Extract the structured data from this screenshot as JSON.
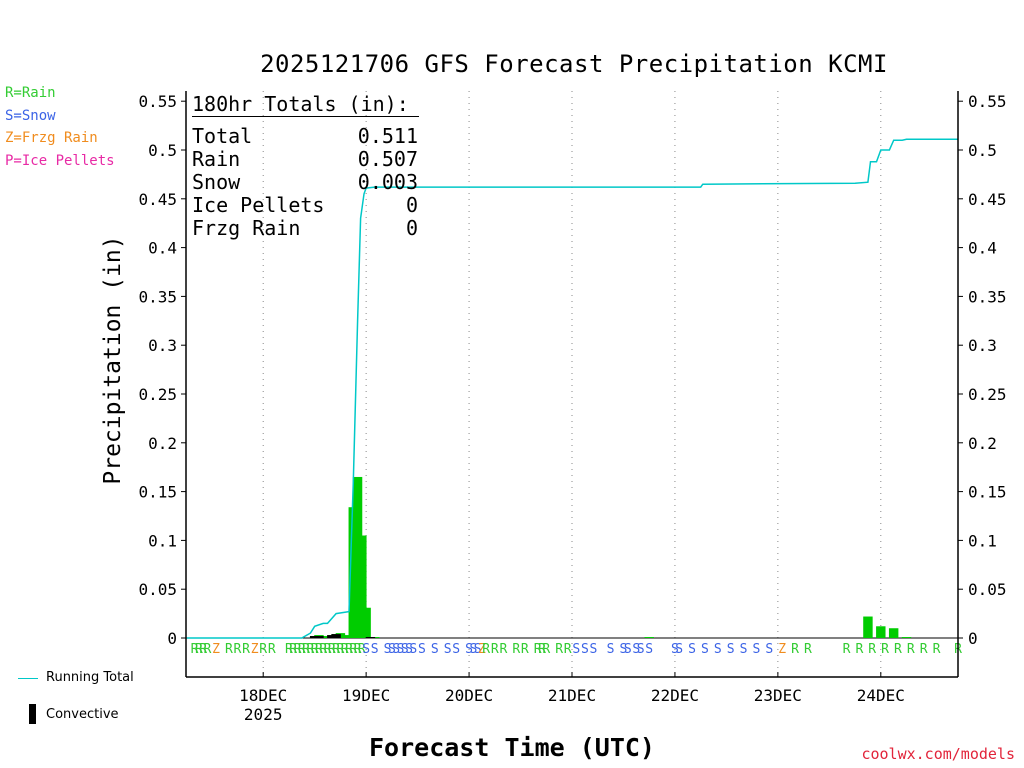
{
  "title": "2025121706 GFS Forecast Precipitation KCMI",
  "credit": "coolwx.com/models",
  "ptype_legend": [
    {
      "label": "R=Rain",
      "color": "#33cc33"
    },
    {
      "label": "S=Snow",
      "color": "#3b63e6"
    },
    {
      "label": "Z=Frzg Rain",
      "color": "#f08c1e"
    },
    {
      "label": "P=Ice Pellets",
      "color": "#e82aa5"
    }
  ],
  "series_legend": {
    "running_total": "Running Total",
    "convective": "Convective"
  },
  "totals_box": {
    "heading": "180hr Totals (in):",
    "rows": [
      {
        "label": "Total",
        "value": "0.511"
      },
      {
        "label": "Rain",
        "value": "0.507"
      },
      {
        "label": "Snow",
        "value": "0.003"
      },
      {
        "label": "Ice Pellets",
        "value": "0"
      },
      {
        "label": "Frzg Rain",
        "value": "0"
      }
    ]
  },
  "colors": {
    "bar": "#00cc00",
    "running_total": "#00c8c8",
    "convective": "#000000"
  },
  "chart_data": {
    "type": "bar",
    "title": "2025121706 GFS Forecast Precipitation KCMI",
    "xlabel": "Forecast Time (UTC)",
    "ylabel": "Precipitation (in)",
    "ylim": [
      0,
      0.56
    ],
    "yticks": [
      "0",
      "0.05",
      "0.1",
      "0.15",
      "0.2",
      "0.25",
      "0.3",
      "0.35",
      "0.4",
      "0.45",
      "0.5",
      "0.55"
    ],
    "xlim_hours": [
      6,
      186
    ],
    "xticks": [
      {
        "hour": 24,
        "label": "18DEC",
        "sublabel": "2025"
      },
      {
        "hour": 48,
        "label": "19DEC",
        "sublabel": ""
      },
      {
        "hour": 72,
        "label": "20DEC",
        "sublabel": ""
      },
      {
        "hour": 96,
        "label": "21DEC",
        "sublabel": ""
      },
      {
        "hour": 120,
        "label": "22DEC",
        "sublabel": ""
      },
      {
        "hour": 144,
        "label": "23DEC",
        "sublabel": ""
      },
      {
        "hour": 168,
        "label": "24DEC",
        "sublabel": ""
      }
    ],
    "grid": "vertical dotted at day boundaries",
    "bar_precip": [
      {
        "hour": 36,
        "value": 0.002
      },
      {
        "hour": 37,
        "value": 0.003
      },
      {
        "hour": 38,
        "value": 0.002
      },
      {
        "hour": 39,
        "value": 0.001
      },
      {
        "hour": 40,
        "value": 0.002
      },
      {
        "hour": 41,
        "value": 0.004
      },
      {
        "hour": 42,
        "value": 0.005
      },
      {
        "hour": 43,
        "value": 0.001
      },
      {
        "hour": 44,
        "value": 0.003
      },
      {
        "hour": 45,
        "value": 0.134
      },
      {
        "hour": 46,
        "value": 0.165
      },
      {
        "hour": 47,
        "value": 0.105
      },
      {
        "hour": 48,
        "value": 0.031
      },
      {
        "hour": 49,
        "value": 0.001
      },
      {
        "hour": 50,
        "value": 0.001
      },
      {
        "hour": 114,
        "value": 0.001
      },
      {
        "hour": 165,
        "value": 0.022
      },
      {
        "hour": 168,
        "value": 0.012
      },
      {
        "hour": 171,
        "value": 0.01
      },
      {
        "hour": 174,
        "value": 0.001
      }
    ],
    "convective": [
      {
        "hour": 36,
        "value": 0.002
      },
      {
        "hour": 37,
        "value": 0.002
      },
      {
        "hour": 40,
        "value": 0.003
      },
      {
        "hour": 41,
        "value": 0.004
      },
      {
        "hour": 49,
        "value": 0.001
      }
    ],
    "running_total": [
      [
        6,
        0
      ],
      [
        30,
        0
      ],
      [
        33,
        0
      ],
      [
        35,
        0.005
      ],
      [
        36,
        0.012
      ],
      [
        38,
        0.015
      ],
      [
        39,
        0.015
      ],
      [
        40,
        0.02
      ],
      [
        41,
        0.025
      ],
      [
        44,
        0.027
      ],
      [
        45,
        0.16
      ],
      [
        46,
        0.325
      ],
      [
        46.7,
        0.43
      ],
      [
        47.5,
        0.455
      ],
      [
        48,
        0.461
      ],
      [
        50,
        0.462
      ],
      [
        126,
        0.462
      ],
      [
        126.5,
        0.465
      ],
      [
        162,
        0.466
      ],
      [
        165,
        0.467
      ],
      [
        165.6,
        0.488
      ],
      [
        167,
        0.488
      ],
      [
        168,
        0.5
      ],
      [
        170,
        0.5
      ],
      [
        171,
        0.51
      ],
      [
        173,
        0.51
      ],
      [
        174,
        0.511
      ],
      [
        186,
        0.511
      ]
    ],
    "ptype_labels": [
      {
        "hour": 8,
        "t": "R"
      },
      {
        "hour": 9,
        "t": "R"
      },
      {
        "hour": 10,
        "t": "R"
      },
      {
        "hour": 11,
        "t": "R"
      },
      {
        "hour": 13,
        "t": "Z"
      },
      {
        "hour": 16,
        "t": "R"
      },
      {
        "hour": 18,
        "t": "R"
      },
      {
        "hour": 20,
        "t": "R"
      },
      {
        "hour": 22,
        "t": "Z"
      },
      {
        "hour": 24,
        "t": "R"
      },
      {
        "hour": 26,
        "t": "R"
      },
      {
        "hour": 30,
        "t": "R"
      },
      {
        "hour": 31,
        "t": "R"
      },
      {
        "hour": 32,
        "t": "R"
      },
      {
        "hour": 33,
        "t": "R"
      },
      {
        "hour": 34,
        "t": "R"
      },
      {
        "hour": 35,
        "t": "R"
      },
      {
        "hour": 36,
        "t": "R"
      },
      {
        "hour": 37,
        "t": "R"
      },
      {
        "hour": 38,
        "t": "R"
      },
      {
        "hour": 39,
        "t": "R"
      },
      {
        "hour": 40,
        "t": "R"
      },
      {
        "hour": 41,
        "t": "R"
      },
      {
        "hour": 42,
        "t": "R"
      },
      {
        "hour": 43,
        "t": "R"
      },
      {
        "hour": 44,
        "t": "R"
      },
      {
        "hour": 45,
        "t": "R"
      },
      {
        "hour": 46,
        "t": "R"
      },
      {
        "hour": 47,
        "t": "R"
      },
      {
        "hour": 48,
        "t": "S"
      },
      {
        "hour": 50,
        "t": "S"
      },
      {
        "hour": 53,
        "t": "S"
      },
      {
        "hour": 54,
        "t": "S"
      },
      {
        "hour": 55,
        "t": "S"
      },
      {
        "hour": 56,
        "t": "S"
      },
      {
        "hour": 57,
        "t": "S"
      },
      {
        "hour": 58,
        "t": "S"
      },
      {
        "hour": 59,
        "t": "S"
      },
      {
        "hour": 61,
        "t": "S"
      },
      {
        "hour": 64,
        "t": "S"
      },
      {
        "hour": 67,
        "t": "S"
      },
      {
        "hour": 69,
        "t": "S"
      },
      {
        "hour": 72,
        "t": "S"
      },
      {
        "hour": 73,
        "t": "S"
      },
      {
        "hour": 74,
        "t": "S"
      },
      {
        "hour": 75,
        "t": "Z"
      },
      {
        "hour": 76,
        "t": "R"
      },
      {
        "hour": 78,
        "t": "R"
      },
      {
        "hour": 80,
        "t": "R"
      },
      {
        "hour": 83,
        "t": "R"
      },
      {
        "hour": 85,
        "t": "R"
      },
      {
        "hour": 88,
        "t": "R"
      },
      {
        "hour": 89,
        "t": "R"
      },
      {
        "hour": 90,
        "t": "R"
      },
      {
        "hour": 93,
        "t": "R"
      },
      {
        "hour": 95,
        "t": "R"
      },
      {
        "hour": 97,
        "t": "S"
      },
      {
        "hour": 99,
        "t": "S"
      },
      {
        "hour": 101,
        "t": "S"
      },
      {
        "hour": 105,
        "t": "S"
      },
      {
        "hour": 108,
        "t": "S"
      },
      {
        "hour": 109,
        "t": "S"
      },
      {
        "hour": 111,
        "t": "S"
      },
      {
        "hour": 112,
        "t": "S"
      },
      {
        "hour": 114,
        "t": "S"
      },
      {
        "hour": 120,
        "t": "S"
      },
      {
        "hour": 121,
        "t": "S"
      },
      {
        "hour": 124,
        "t": "S"
      },
      {
        "hour": 127,
        "t": "S"
      },
      {
        "hour": 130,
        "t": "S"
      },
      {
        "hour": 133,
        "t": "S"
      },
      {
        "hour": 136,
        "t": "S"
      },
      {
        "hour": 139,
        "t": "S"
      },
      {
        "hour": 142,
        "t": "S"
      },
      {
        "hour": 145,
        "t": "Z"
      },
      {
        "hour": 148,
        "t": "R"
      },
      {
        "hour": 151,
        "t": "R"
      },
      {
        "hour": 160,
        "t": "R"
      },
      {
        "hour": 163,
        "t": "R"
      },
      {
        "hour": 166,
        "t": "R"
      },
      {
        "hour": 169,
        "t": "R"
      },
      {
        "hour": 172,
        "t": "R"
      },
      {
        "hour": 175,
        "t": "R"
      },
      {
        "hour": 178,
        "t": "R"
      },
      {
        "hour": 181,
        "t": "R"
      },
      {
        "hour": 186,
        "t": "R"
      }
    ]
  }
}
